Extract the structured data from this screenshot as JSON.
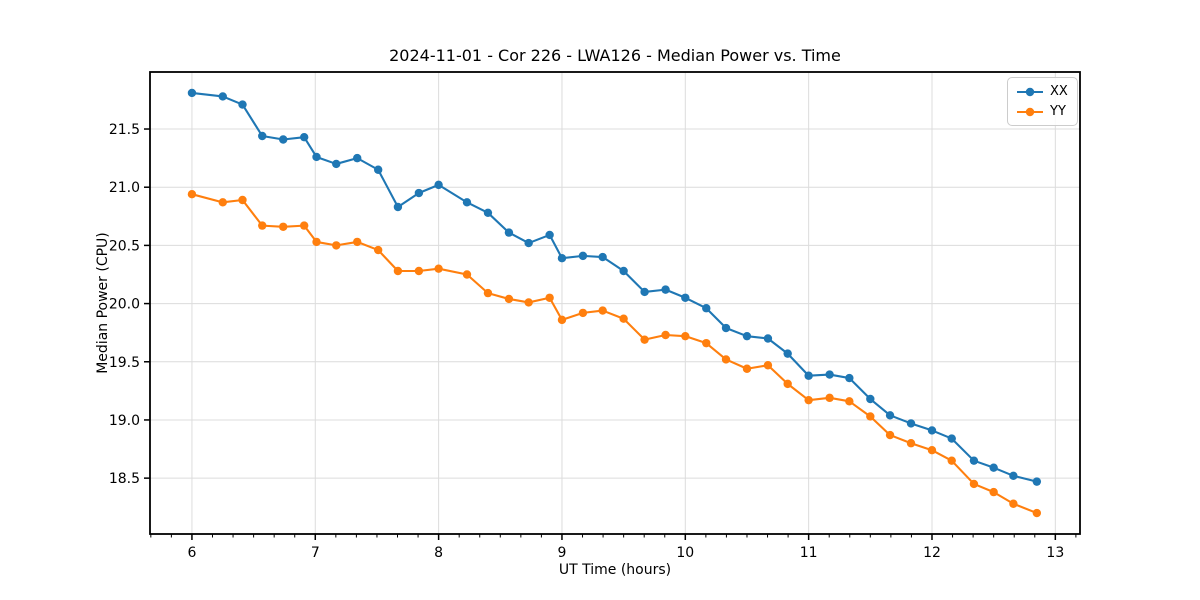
{
  "chart_data": {
    "type": "line",
    "title": "2024-11-01 - Cor 226 - LWA126 - Median Power vs. Time",
    "xlabel": "UT Time (hours)",
    "ylabel": "Median Power (CPU)",
    "xlim": [
      5.66,
      13.2
    ],
    "ylim": [
      18.02,
      21.99
    ],
    "x_ticks": [
      6,
      7,
      8,
      9,
      10,
      11,
      12,
      13
    ],
    "x_minor_tick_step": 0.166667,
    "y_ticks": [
      18.5,
      19.0,
      19.5,
      20.0,
      20.5,
      21.0,
      21.5
    ],
    "grid": true,
    "grid_color": "#dcdcdc",
    "legend_position": "upper right",
    "x": [
      6.0,
      6.25,
      6.41,
      6.57,
      6.74,
      6.91,
      7.01,
      7.17,
      7.34,
      7.51,
      7.67,
      7.84,
      8.0,
      8.23,
      8.4,
      8.57,
      8.73,
      8.9,
      9.0,
      9.17,
      9.33,
      9.5,
      9.67,
      9.84,
      10.0,
      10.17,
      10.33,
      10.5,
      10.67,
      10.83,
      11.0,
      11.17,
      11.33,
      11.5,
      11.66,
      11.83,
      12.0,
      12.16,
      12.34,
      12.5,
      12.66,
      12.85
    ],
    "series": [
      {
        "name": "XX",
        "color": "#1f77b4",
        "values": [
          21.81,
          21.78,
          21.71,
          21.44,
          21.41,
          21.43,
          21.26,
          21.2,
          21.25,
          21.15,
          20.83,
          20.95,
          21.02,
          20.87,
          20.78,
          20.61,
          20.52,
          20.59,
          20.39,
          20.41,
          20.4,
          20.28,
          20.1,
          20.12,
          20.05,
          19.96,
          19.79,
          19.72,
          19.7,
          19.57,
          19.38,
          19.39,
          19.36,
          19.18,
          19.04,
          18.97,
          18.91,
          18.84,
          18.65,
          18.59,
          18.52,
          18.47
        ]
      },
      {
        "name": "YY",
        "color": "#ff7f0e",
        "values": [
          20.94,
          20.87,
          20.89,
          20.67,
          20.66,
          20.67,
          20.53,
          20.5,
          20.53,
          20.46,
          20.28,
          20.28,
          20.3,
          20.25,
          20.09,
          20.04,
          20.01,
          20.05,
          19.86,
          19.92,
          19.94,
          19.87,
          19.69,
          19.73,
          19.72,
          19.66,
          19.52,
          19.44,
          19.47,
          19.31,
          19.17,
          19.19,
          19.16,
          19.03,
          18.87,
          18.8,
          18.74,
          18.65,
          18.45,
          18.38,
          18.28,
          18.2
        ]
      }
    ]
  }
}
